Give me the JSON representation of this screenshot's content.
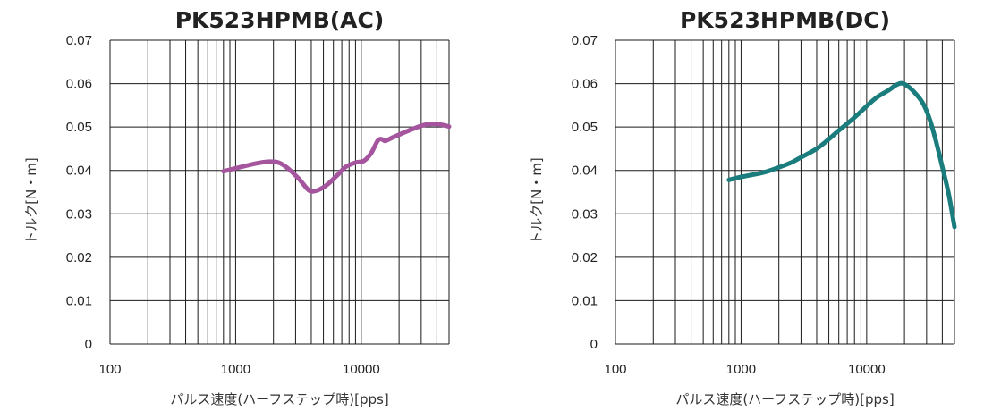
{
  "chart_data": [
    {
      "type": "line",
      "title": "PK523HPMB(AC)",
      "xlabel": "パルス速度(ハーフステップ時)[pps]",
      "ylabel": "トルク[N・m]",
      "x_scale": "log",
      "xlim": [
        100,
        50000
      ],
      "ylim": [
        0,
        0.07
      ],
      "x_tick_labels": [
        "100",
        "1000",
        "10000"
      ],
      "y_tick_labels": [
        "0",
        "0.01",
        "0.02",
        "0.03",
        "0.04",
        "0.05",
        "0.06",
        "0.07"
      ],
      "grid": true,
      "series": [
        {
          "color": "#a4559e",
          "x": [
            800,
            1000,
            1400,
            1800,
            2200,
            2600,
            3200,
            3800,
            4200,
            4800,
            5500,
            6500,
            7500,
            9000,
            10500,
            12000,
            13500,
            14500,
            15500,
            17500,
            21000,
            26000,
            32000,
            38000,
            44000,
            50000
          ],
          "y": [
            0.0398,
            0.0405,
            0.0415,
            0.042,
            0.0418,
            0.0405,
            0.038,
            0.0355,
            0.0352,
            0.0358,
            0.037,
            0.039,
            0.0408,
            0.0418,
            0.0422,
            0.044,
            0.0468,
            0.0472,
            0.0468,
            0.0475,
            0.0485,
            0.0496,
            0.0505,
            0.0507,
            0.0505,
            0.0501
          ]
        }
      ]
    },
    {
      "type": "line",
      "title": "PK523HPMB(DC)",
      "xlabel": "パルス速度(ハーフステップ時)[pps]",
      "ylabel": "トルク[N・m]",
      "x_scale": "log",
      "xlim": [
        100,
        50000
      ],
      "ylim": [
        0,
        0.07
      ],
      "x_tick_labels": [
        "100",
        "1000",
        "10000"
      ],
      "y_tick_labels": [
        "0",
        "0.01",
        "0.02",
        "0.03",
        "0.04",
        "0.05",
        "0.06",
        "0.07"
      ],
      "grid": true,
      "series": [
        {
          "color": "#1a7c7c",
          "x": [
            800,
            1000,
            1500,
            2000,
            2500,
            3000,
            4000,
            5000,
            6000,
            8000,
            10000,
            12000,
            15000,
            17000,
            19000,
            21000,
            24000,
            28000,
            32000,
            36000,
            40000,
            45000,
            50000
          ],
          "y": [
            0.0378,
            0.0385,
            0.0395,
            0.0407,
            0.0418,
            0.043,
            0.045,
            0.0472,
            0.0492,
            0.0522,
            0.0548,
            0.0568,
            0.0585,
            0.0596,
            0.0601,
            0.0595,
            0.058,
            0.0555,
            0.0515,
            0.0462,
            0.0408,
            0.0345,
            0.027
          ]
        }
      ]
    }
  ]
}
